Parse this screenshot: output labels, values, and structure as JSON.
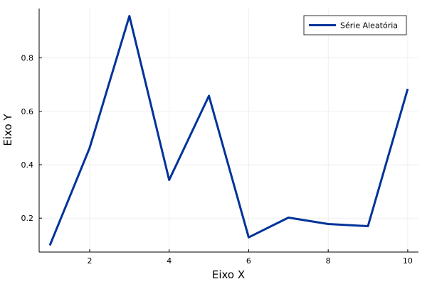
{
  "chart_data": {
    "type": "line",
    "title": "",
    "xlabel": "Eixo X",
    "ylabel": "Eixo Y",
    "xlim": [
      0.73,
      10.27
    ],
    "ylim": [
      0.073,
      0.985
    ],
    "xticks": [
      2,
      4,
      6,
      8,
      10
    ],
    "yticks": [
      0.2,
      0.4,
      0.6,
      0.8
    ],
    "xtick_labels": [
      "2",
      "4",
      "6",
      "8",
      "10"
    ],
    "ytick_labels": [
      "0.2",
      "0.4",
      "0.6",
      "0.8"
    ],
    "grid": true,
    "legend_position": "top-right",
    "series": [
      {
        "name": "Série Aleatória",
        "color": "#003399",
        "x": [
          1,
          2,
          3,
          4,
          5,
          6,
          7,
          8,
          9,
          10
        ],
        "y": [
          0.098,
          0.463,
          0.957,
          0.343,
          0.658,
          0.128,
          0.202,
          0.178,
          0.17,
          0.684
        ]
      }
    ]
  }
}
